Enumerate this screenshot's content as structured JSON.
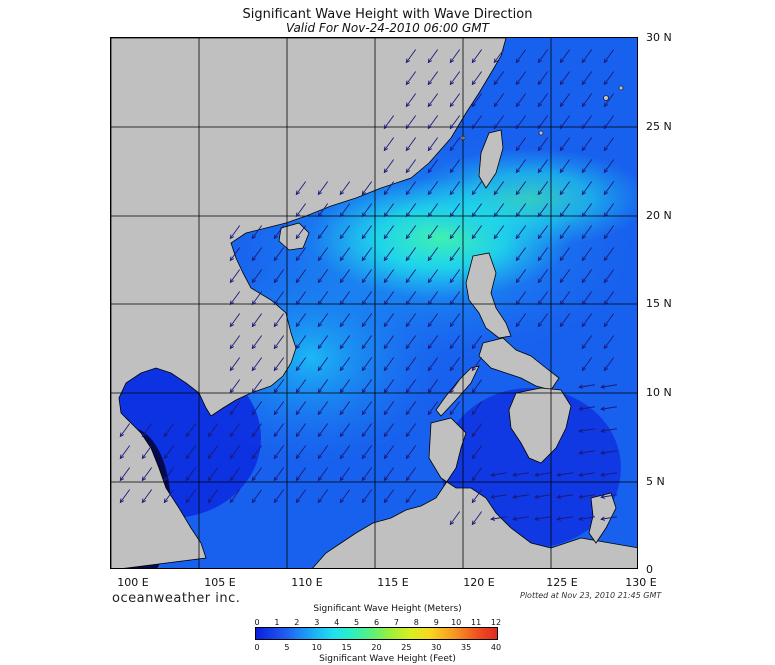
{
  "title": "Significant Wave Height with Wave Direction",
  "subtitle": "Valid For Nov-24-2010 06:00 GMT",
  "brand": "oceanweather inc.",
  "plotted": "Plotted at Nov 23, 2010 21:45 GMT",
  "lat_labels": [
    "30 N",
    "25 N",
    "20 N",
    "15 N",
    "10 N",
    "5 N",
    "0"
  ],
  "lon_labels": [
    "100 E",
    "105 E",
    "110 E",
    "115 E",
    "120 E",
    "125 E",
    "130 E"
  ],
  "colorbar": {
    "title_top": "Significant Wave Height (Meters)",
    "title_bottom": "Significant Wave Height (Feet)",
    "meters": [
      "0",
      "1",
      "2",
      "3",
      "4",
      "5",
      "6",
      "7",
      "8",
      "9",
      "10",
      "11",
      "12"
    ],
    "feet": [
      "0",
      "5",
      "10",
      "15",
      "20",
      "25",
      "30",
      "35",
      "40"
    ]
  },
  "colors": {
    "land": "#c0c0c0",
    "sea_low": "#0a1fe0",
    "sea_mid": "#1ca2f5",
    "sea_high": "#2cf0c0",
    "arrow": "#1a1a7a"
  },
  "arrow_direction_note": "arrows point toward southwest"
}
